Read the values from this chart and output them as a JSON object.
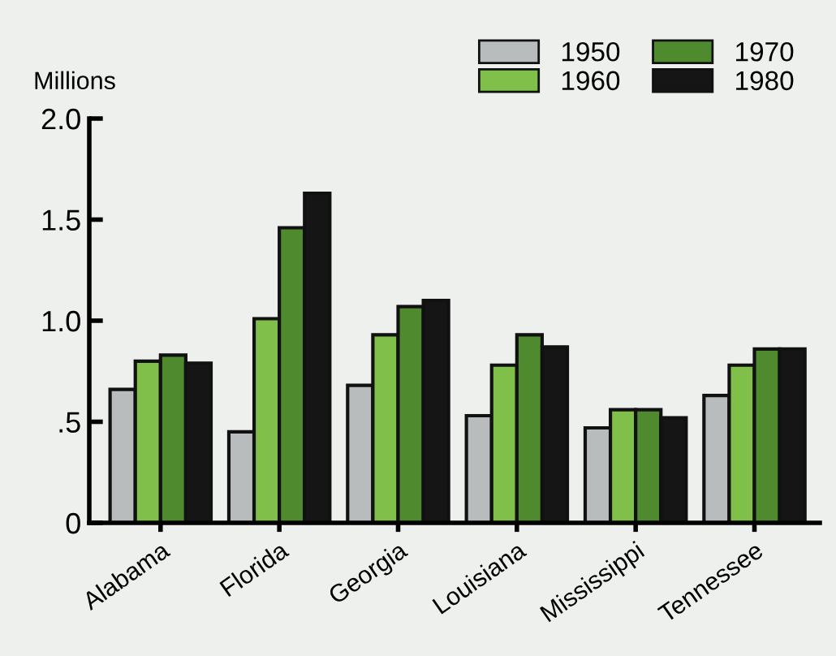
{
  "chart_data": {
    "type": "bar",
    "ylabel": "Millions",
    "categories": [
      "Alabama",
      "Florida",
      "Georgia",
      "Louisiana",
      "Mississippi",
      "Tennessee"
    ],
    "series": [
      {
        "name": "1950",
        "color": "#b8bcbc",
        "values": [
          0.66,
          0.45,
          0.68,
          0.53,
          0.47,
          0.63
        ]
      },
      {
        "name": "1960",
        "color": "#7fbf4a",
        "values": [
          0.8,
          1.01,
          0.93,
          0.78,
          0.56,
          0.78
        ]
      },
      {
        "name": "1970",
        "color": "#4f8a2e",
        "values": [
          0.83,
          1.46,
          1.07,
          0.93,
          0.56,
          0.86
        ]
      },
      {
        "name": "1980",
        "color": "#151515",
        "values": [
          0.79,
          1.63,
          1.1,
          0.87,
          0.52,
          0.86
        ]
      }
    ],
    "ylim": [
      0,
      2.0
    ],
    "yticks": [
      0,
      {
        "value": 0.5,
        "label": ".5"
      },
      {
        "value": 1.0,
        "label": "1.0"
      },
      {
        "value": 1.5,
        "label": "1.5"
      },
      {
        "value": 2.0,
        "label": "2.0"
      }
    ],
    "grid": false,
    "legend": "top right"
  }
}
